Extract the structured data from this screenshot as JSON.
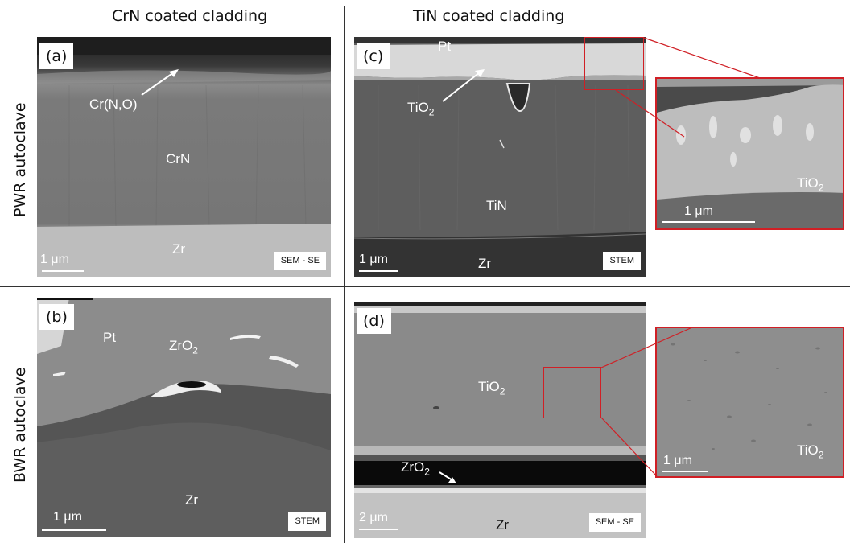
{
  "columns": {
    "left": "CrN coated cladding",
    "right": "TiN coated cladding"
  },
  "rows": {
    "top": "PWR autoclave",
    "bottom": "BWR autoclave"
  },
  "panel_a": {
    "tag": "(a)",
    "labels": {
      "outer": "Cr(N,O)",
      "coating": "CrN",
      "substrate": "Zr"
    },
    "scale": "1 μm",
    "mode": "SEM - SE"
  },
  "panel_b": {
    "tag": "(b)",
    "labels": {
      "pt": "Pt",
      "oxide_main": "ZrO",
      "oxide_sub": "2",
      "substrate": "Zr"
    },
    "scale": "1 μm",
    "mode": "STEM"
  },
  "panel_c": {
    "tag": "(c)",
    "labels": {
      "pt": "Pt",
      "oxide_main": "TiO",
      "oxide_sub": "2",
      "coating": "TiN",
      "substrate": "Zr"
    },
    "scale": "1 μm",
    "mode": "STEM",
    "zoom": {
      "label_main": "TiO",
      "label_sub": "2",
      "scale": "1 μm"
    }
  },
  "panel_d": {
    "tag": "(d)",
    "labels": {
      "oxide_main": "TiO",
      "oxide_sub": "2",
      "zro_main": "ZrO",
      "zro_sub": "2",
      "substrate": "Zr"
    },
    "scale": "2 μm",
    "mode": "SEM - SE",
    "zoom": {
      "label_main": "TiO",
      "label_sub": "2",
      "scale": "1 μm"
    }
  },
  "colors": {
    "zoom_frame": "#d01f25"
  }
}
